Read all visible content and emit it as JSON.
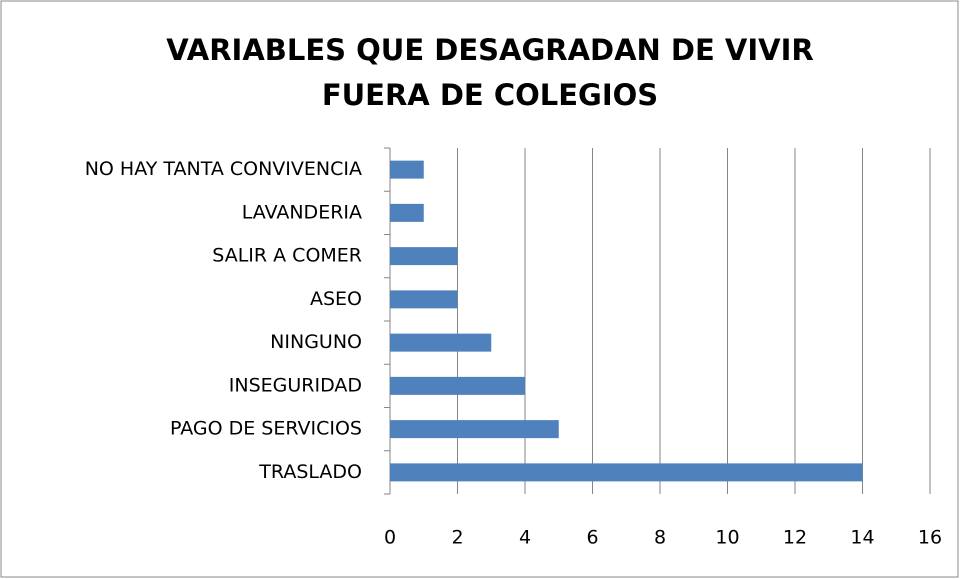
{
  "chart_data": {
    "type": "barh",
    "title": [
      "VARIABLES  QUE DESAGRADAN  DE VIVIR",
      "FUERA DE COLEGIOS"
    ],
    "categories": [
      "NO HAY TANTA CONVIVENCIA",
      "LAVANDERIA",
      "SALIR A COMER",
      "ASEO",
      "NINGUNO",
      "INSEGURIDAD",
      "PAGO DE SERVICIOS",
      "TRASLADO"
    ],
    "values": [
      1,
      1,
      2,
      2,
      3,
      4,
      5,
      14
    ],
    "color": "#4f81bd",
    "xlim": [
      0,
      16
    ],
    "xticks": [
      0,
      2,
      4,
      6,
      8,
      10,
      12,
      14,
      16
    ],
    "grid": true
  }
}
